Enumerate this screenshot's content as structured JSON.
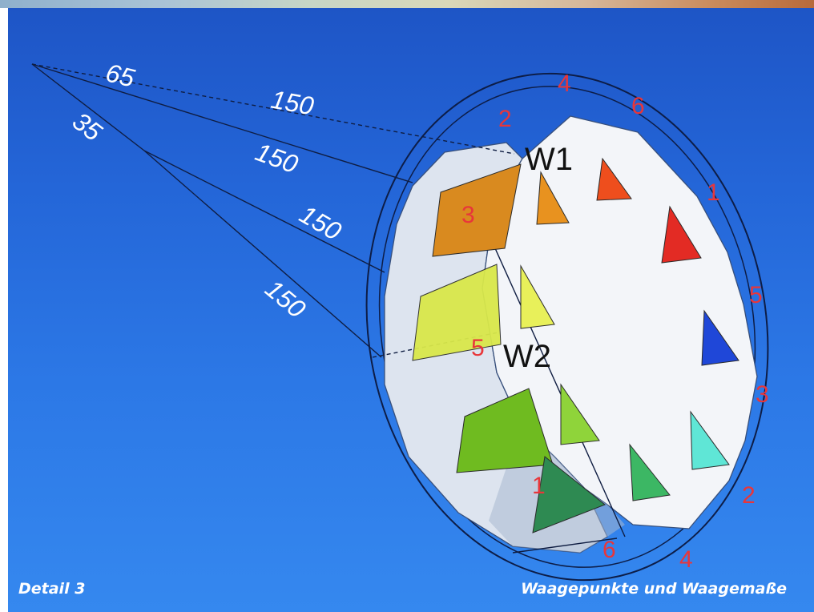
{
  "diagram": {
    "measurements": [
      "65",
      "35",
      "150",
      "150",
      "150",
      "150"
    ],
    "bridle_points": [
      "W1",
      "W2"
    ],
    "point_labels": [
      "4",
      "6",
      "2",
      "1",
      "3",
      "5",
      "5",
      "3",
      "1",
      "2",
      "6",
      "4"
    ]
  },
  "footer": {
    "detail": "Detail 3",
    "caption": "Waagepunkte und Waagemaße"
  },
  "colors": {
    "sky_top": "#1e55c6",
    "sky_bottom": "#3588ef",
    "point_label": "#e8363a",
    "sail": "#eef1f6"
  }
}
